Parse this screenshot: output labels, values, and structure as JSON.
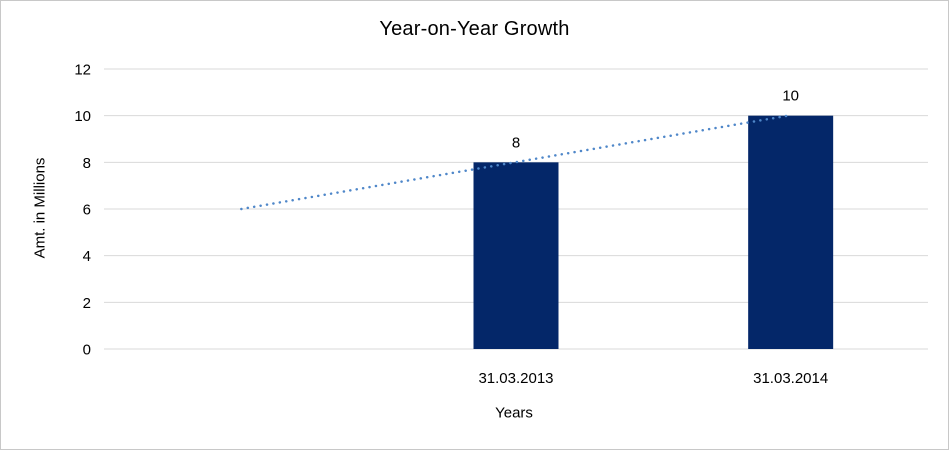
{
  "chart_data": {
    "type": "bar",
    "title": "Year-on-Year Growth",
    "x_axis_title": "Years",
    "y_axis_title": "Amt. in Millions",
    "categories": [
      "31.03.2013",
      "31.03.2014"
    ],
    "values": [
      8,
      10
    ],
    "data_labels": [
      "8",
      "10"
    ],
    "y_ticks": [
      "0",
      "2",
      "4",
      "6",
      "8",
      "10",
      "12"
    ],
    "y_tick_values": [
      0,
      2,
      4,
      6,
      8,
      10,
      12
    ],
    "ylim": [
      0,
      12
    ],
    "grid": true,
    "legend": "none",
    "bar_color": "#042769",
    "trendline": {
      "style": "dotted",
      "color": "#4f87c9",
      "start_value": 6,
      "end_value": 10,
      "spans_leading_empty_slot": true
    },
    "gridline_color": "#d9d9d9",
    "text_color": "#000000",
    "background": "#ffffff",
    "border_color": "#c8c8c8"
  }
}
